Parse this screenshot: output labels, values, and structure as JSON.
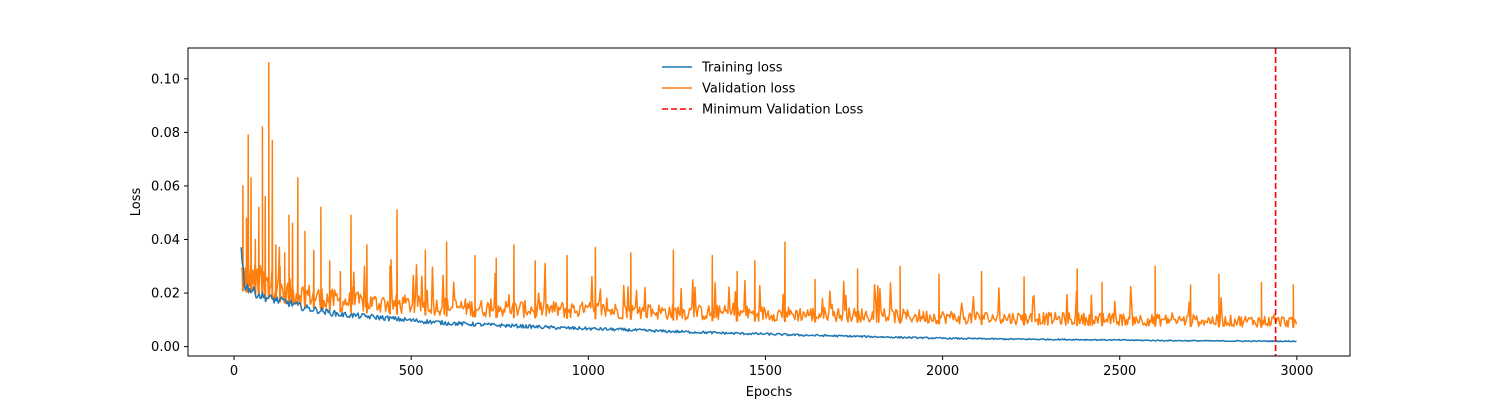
{
  "chart_data": {
    "type": "line",
    "title": "",
    "xlabel": "Epochs",
    "ylabel": "Loss",
    "xlim": [
      -130,
      3150
    ],
    "ylim": [
      -0.0035,
      0.1115
    ],
    "xticks": [
      0,
      500,
      1000,
      1500,
      2000,
      2500,
      3000
    ],
    "yticks": [
      0.0,
      0.02,
      0.04,
      0.06,
      0.08,
      0.1
    ],
    "xtick_labels": [
      "0",
      "500",
      "1000",
      "1500",
      "2000",
      "2500",
      "3000"
    ],
    "ytick_labels": [
      "0.00",
      "0.02",
      "0.04",
      "0.06",
      "0.08",
      "0.10"
    ],
    "grid": false,
    "legend_position": "top-center",
    "series": [
      {
        "name": "Training loss",
        "color": "#1f77b4",
        "x": [
          20,
          30,
          50,
          75,
          100,
          150,
          200,
          300,
          400,
          500,
          600,
          700,
          800,
          900,
          1000,
          1100,
          1200,
          1300,
          1400,
          1500,
          1600,
          1700,
          1800,
          1900,
          2000,
          2200,
          2400,
          2600,
          2800,
          3000
        ],
        "values": [
          0.036,
          0.023,
          0.021,
          0.019,
          0.018,
          0.0165,
          0.0145,
          0.012,
          0.011,
          0.0098,
          0.0088,
          0.0082,
          0.0077,
          0.0071,
          0.0067,
          0.0063,
          0.0058,
          0.0054,
          0.005,
          0.0047,
          0.0043,
          0.004,
          0.0037,
          0.0034,
          0.0031,
          0.0028,
          0.0026,
          0.0023,
          0.0021,
          0.002
        ]
      },
      {
        "name": "Validation loss",
        "color": "#ff7f0e",
        "x": [
          20,
          50,
          100,
          150,
          200,
          300,
          400,
          500,
          700,
          1000,
          1300,
          1500,
          1800,
          2000,
          2300,
          2500,
          2800,
          3000
        ],
        "values": [
          0.021,
          0.02,
          0.018,
          0.016,
          0.015,
          0.013,
          0.0125,
          0.012,
          0.011,
          0.0105,
          0.0098,
          0.0095,
          0.009,
          0.0085,
          0.008,
          0.0078,
          0.0074,
          0.0072
        ],
        "spikes": [
          {
            "x": 25,
            "y": 0.06
          },
          {
            "x": 35,
            "y": 0.048
          },
          {
            "x": 40,
            "y": 0.079
          },
          {
            "x": 48,
            "y": 0.063
          },
          {
            "x": 60,
            "y": 0.04
          },
          {
            "x": 70,
            "y": 0.052
          },
          {
            "x": 80,
            "y": 0.082
          },
          {
            "x": 88,
            "y": 0.056
          },
          {
            "x": 98,
            "y": 0.106
          },
          {
            "x": 108,
            "y": 0.077
          },
          {
            "x": 118,
            "y": 0.038
          },
          {
            "x": 130,
            "y": 0.03
          },
          {
            "x": 143,
            "y": 0.035
          },
          {
            "x": 155,
            "y": 0.049
          },
          {
            "x": 165,
            "y": 0.046
          },
          {
            "x": 180,
            "y": 0.063
          },
          {
            "x": 200,
            "y": 0.043
          },
          {
            "x": 225,
            "y": 0.036
          },
          {
            "x": 245,
            "y": 0.052
          },
          {
            "x": 270,
            "y": 0.032
          },
          {
            "x": 300,
            "y": 0.028
          },
          {
            "x": 330,
            "y": 0.049
          },
          {
            "x": 375,
            "y": 0.038
          },
          {
            "x": 440,
            "y": 0.03
          },
          {
            "x": 460,
            "y": 0.051
          },
          {
            "x": 540,
            "y": 0.036
          },
          {
            "x": 600,
            "y": 0.039
          },
          {
            "x": 680,
            "y": 0.034
          },
          {
            "x": 740,
            "y": 0.033
          },
          {
            "x": 790,
            "y": 0.038
          },
          {
            "x": 850,
            "y": 0.032
          },
          {
            "x": 940,
            "y": 0.034
          },
          {
            "x": 1020,
            "y": 0.037
          },
          {
            "x": 1120,
            "y": 0.035
          },
          {
            "x": 1240,
            "y": 0.036
          },
          {
            "x": 1350,
            "y": 0.034
          },
          {
            "x": 1420,
            "y": 0.028
          },
          {
            "x": 1470,
            "y": 0.032
          },
          {
            "x": 1555,
            "y": 0.039
          },
          {
            "x": 1640,
            "y": 0.025
          },
          {
            "x": 1760,
            "y": 0.029
          },
          {
            "x": 1880,
            "y": 0.03
          },
          {
            "x": 1990,
            "y": 0.027
          },
          {
            "x": 2110,
            "y": 0.028
          },
          {
            "x": 2230,
            "y": 0.026
          },
          {
            "x": 2380,
            "y": 0.029
          },
          {
            "x": 2450,
            "y": 0.024
          },
          {
            "x": 2600,
            "y": 0.03
          },
          {
            "x": 2700,
            "y": 0.023
          },
          {
            "x": 2780,
            "y": 0.027
          },
          {
            "x": 2900,
            "y": 0.024
          },
          {
            "x": 2990,
            "y": 0.023
          }
        ]
      },
      {
        "name": "Minimum Validation Loss",
        "color": "#ff0000",
        "style": "dashed",
        "x_value": 2940
      }
    ]
  }
}
